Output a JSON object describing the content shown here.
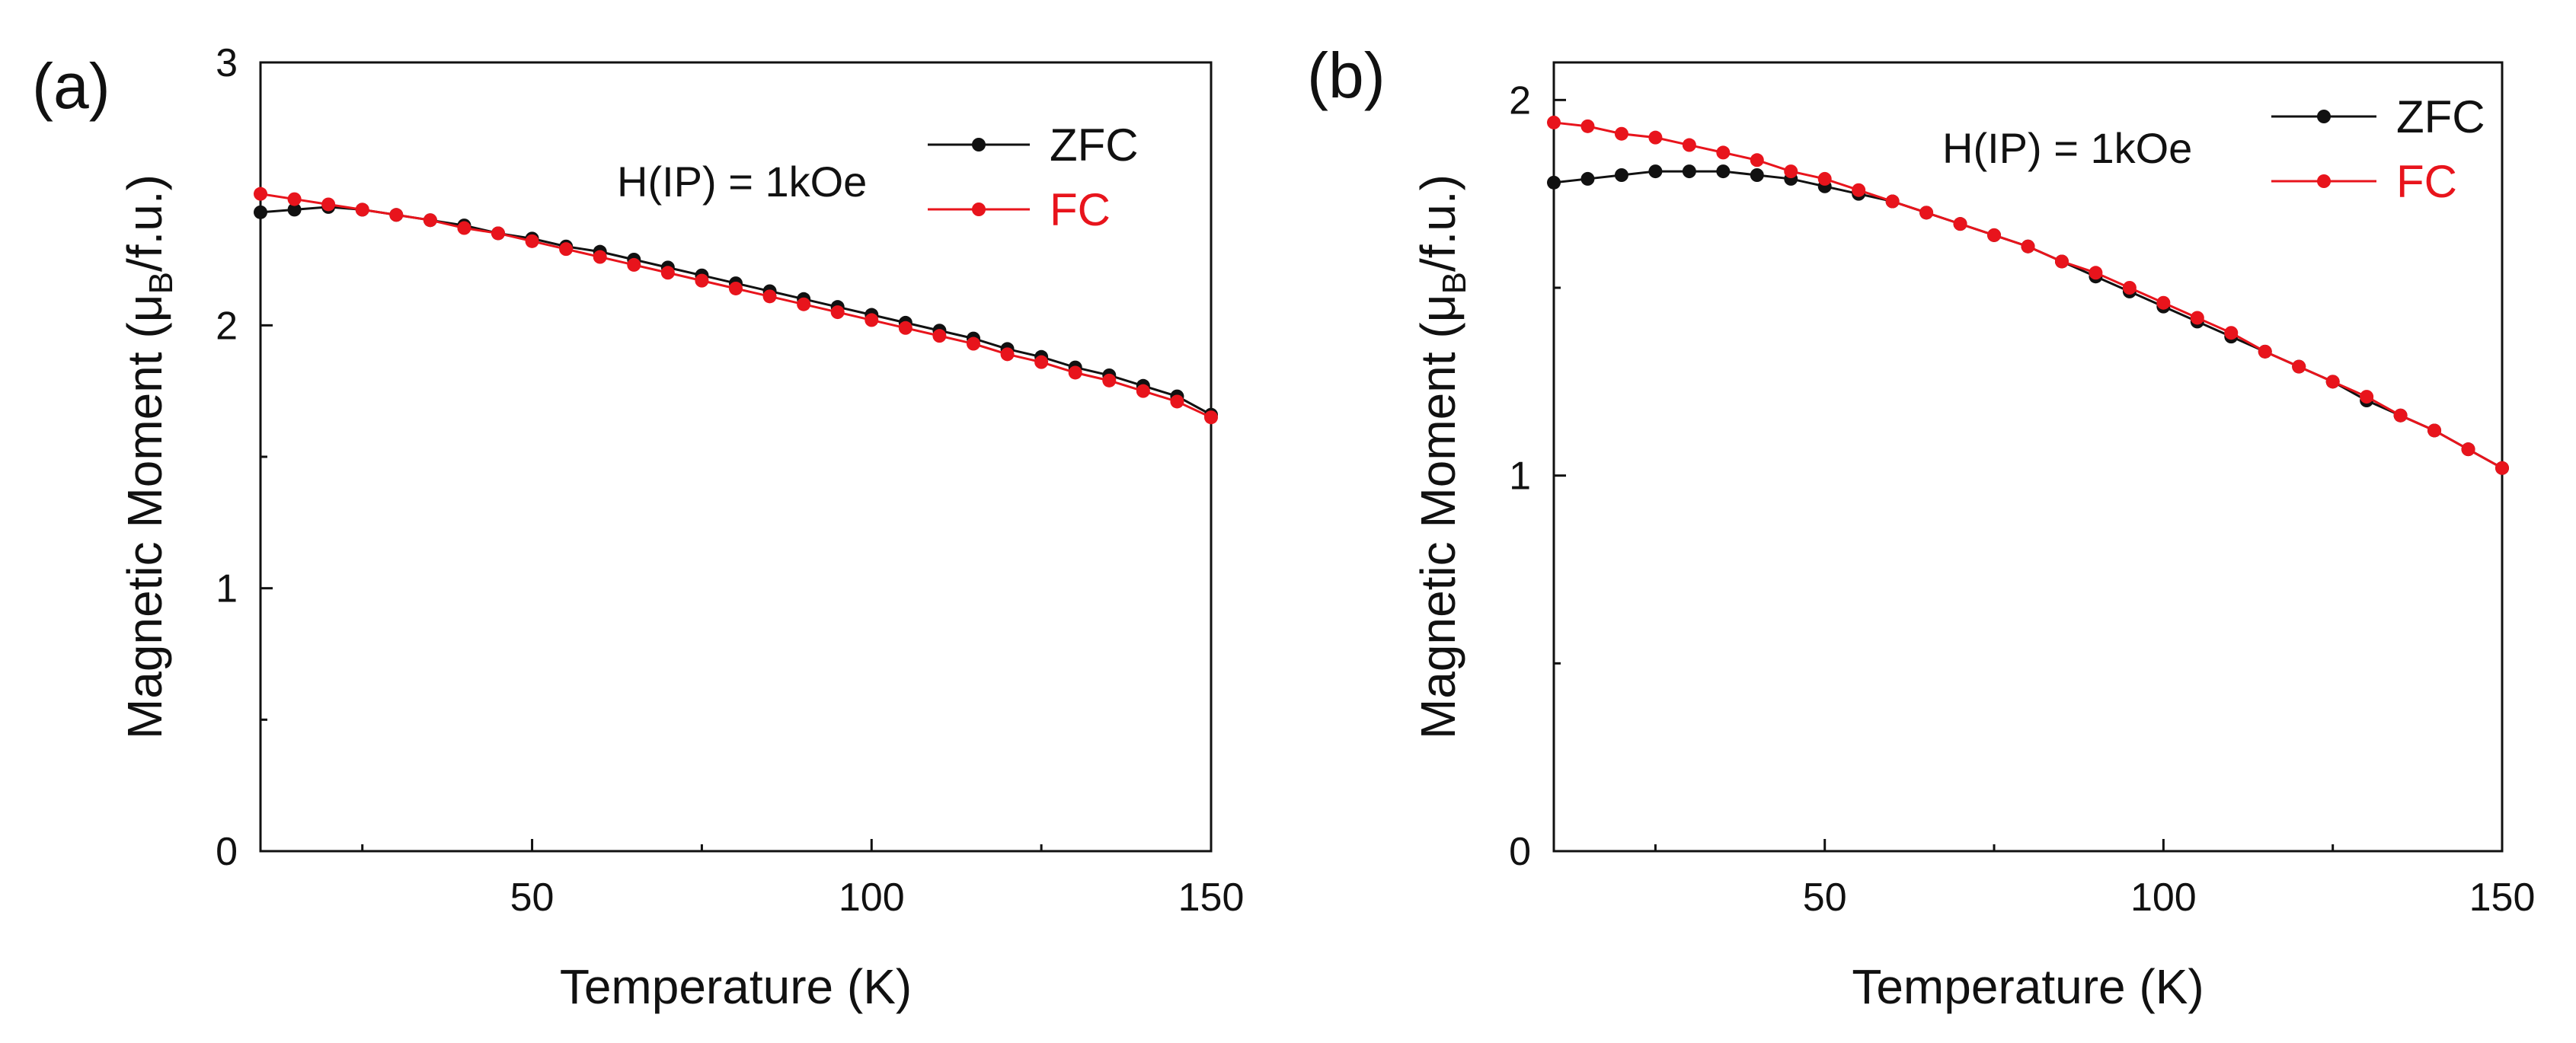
{
  "chart_data": [
    {
      "type": "scatter",
      "panel_label": "(a)",
      "annotation": "H(IP) = 1kOe",
      "xlabel": "Temperature (K)",
      "ylabel": {
        "prefix": "Magnetic Moment (μ",
        "sub": "B",
        "suffix": "/f.u.)"
      },
      "xlim": [
        10,
        150
      ],
      "ylim": [
        0,
        3
      ],
      "x_ticks": [
        50,
        100,
        150
      ],
      "x_minor_ticks": [
        25,
        75,
        125
      ],
      "y_ticks": [
        0,
        1,
        2,
        3
      ],
      "y_minor_ticks": [
        0.5,
        1.5,
        2.5
      ],
      "legend_position": "top-right",
      "x": [
        10,
        15,
        20,
        25,
        30,
        35,
        40,
        45,
        50,
        55,
        60,
        65,
        70,
        75,
        80,
        85,
        90,
        95,
        100,
        105,
        110,
        115,
        120,
        125,
        130,
        135,
        140,
        145,
        150
      ],
      "series": [
        {
          "name": "ZFC",
          "color": "#111111",
          "values": [
            2.43,
            2.44,
            2.45,
            2.44,
            2.42,
            2.4,
            2.38,
            2.35,
            2.33,
            2.3,
            2.28,
            2.25,
            2.22,
            2.19,
            2.16,
            2.13,
            2.1,
            2.07,
            2.04,
            2.01,
            1.98,
            1.95,
            1.91,
            1.88,
            1.84,
            1.81,
            1.77,
            1.73,
            1.66
          ]
        },
        {
          "name": "FC",
          "color": "#e8141c",
          "values": [
            2.5,
            2.48,
            2.46,
            2.44,
            2.42,
            2.4,
            2.37,
            2.35,
            2.32,
            2.29,
            2.26,
            2.23,
            2.2,
            2.17,
            2.14,
            2.11,
            2.08,
            2.05,
            2.02,
            1.99,
            1.96,
            1.93,
            1.89,
            1.86,
            1.82,
            1.79,
            1.75,
            1.71,
            1.65
          ]
        }
      ]
    },
    {
      "type": "scatter",
      "panel_label": "(b)",
      "annotation": "H(IP) = 1kOe",
      "xlabel": "Temperature (K)",
      "ylabel": {
        "prefix": "Magnetic Moment (μ",
        "sub": "B",
        "suffix": "/f.u.)"
      },
      "xlim": [
        10,
        150
      ],
      "ylim": [
        0,
        2.1
      ],
      "x_ticks": [
        50,
        100,
        150
      ],
      "x_minor_ticks": [
        25,
        75,
        125
      ],
      "y_ticks": [
        0,
        1,
        2
      ],
      "y_minor_ticks": [
        0.5,
        1.5
      ],
      "legend_position": "top-right",
      "x": [
        10,
        15,
        20,
        25,
        30,
        35,
        40,
        45,
        50,
        55,
        60,
        65,
        70,
        75,
        80,
        85,
        90,
        95,
        100,
        105,
        110,
        115,
        120,
        125,
        130,
        135,
        140,
        145,
        150
      ],
      "series": [
        {
          "name": "ZFC",
          "color": "#111111",
          "values": [
            1.78,
            1.79,
            1.8,
            1.81,
            1.81,
            1.81,
            1.8,
            1.79,
            1.77,
            1.75,
            1.73,
            1.7,
            1.67,
            1.64,
            1.61,
            1.57,
            1.53,
            1.49,
            1.45,
            1.41,
            1.37,
            1.33,
            1.29,
            1.25,
            1.2,
            1.16,
            1.12,
            1.07,
            1.02
          ]
        },
        {
          "name": "FC",
          "color": "#e8141c",
          "values": [
            1.94,
            1.93,
            1.91,
            1.9,
            1.88,
            1.86,
            1.84,
            1.81,
            1.79,
            1.76,
            1.73,
            1.7,
            1.67,
            1.64,
            1.61,
            1.57,
            1.54,
            1.5,
            1.46,
            1.42,
            1.38,
            1.33,
            1.29,
            1.25,
            1.21,
            1.16,
            1.12,
            1.07,
            1.02
          ]
        }
      ]
    }
  ]
}
